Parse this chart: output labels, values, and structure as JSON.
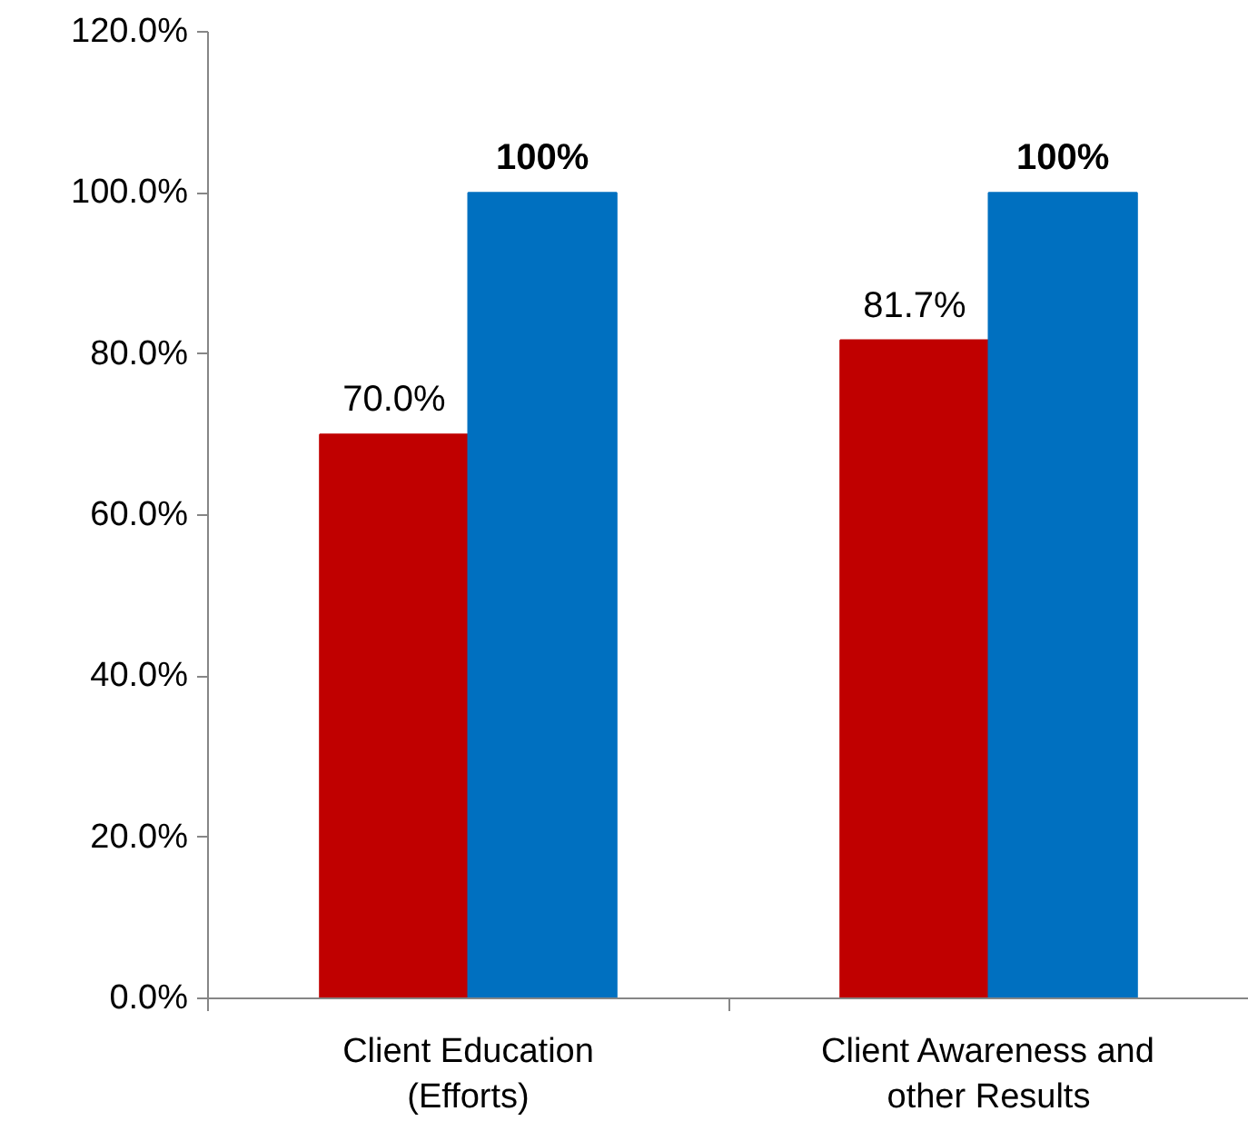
{
  "chart_data": {
    "type": "bar",
    "categories": [
      "Client Education (Efforts)",
      "Client Awareness and other Results"
    ],
    "series": [
      {
        "color": "#c00000",
        "values": [
          70.0,
          81.7
        ],
        "value_labels": [
          "70.0%",
          "81.7%"
        ]
      },
      {
        "color": "#0070c0",
        "values": [
          100,
          100
        ],
        "value_labels": [
          "100%",
          "100%"
        ]
      }
    ],
    "ylim": [
      0,
      120
    ],
    "yticks": [
      {
        "value": 0,
        "label": "0.0%"
      },
      {
        "value": 20,
        "label": "20.0%"
      },
      {
        "value": 40,
        "label": "40.0%"
      },
      {
        "value": 60,
        "label": "60.0%"
      },
      {
        "value": 80,
        "label": "80.0%"
      },
      {
        "value": 100,
        "label": "100.0%"
      },
      {
        "value": 120,
        "label": "120.0%"
      }
    ],
    "grid": false
  }
}
